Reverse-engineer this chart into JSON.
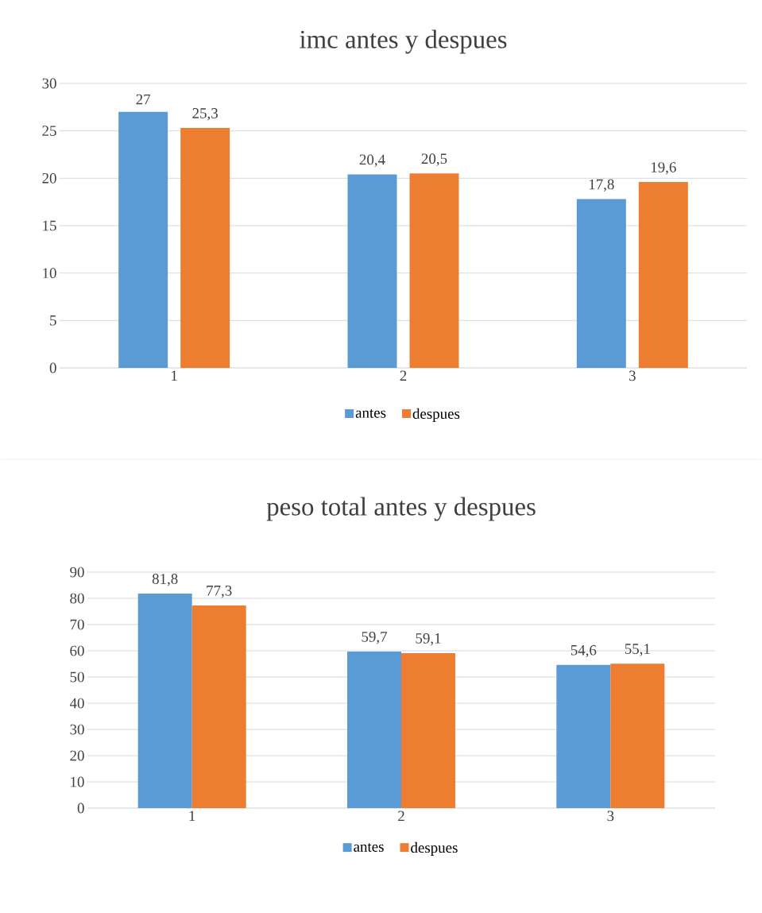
{
  "chart_data": [
    {
      "type": "bar",
      "title": "imc antes y despues",
      "categories": [
        "1",
        "2",
        "3"
      ],
      "series": [
        {
          "name": "antes",
          "color": "#5b9bd5",
          "values": [
            27,
            20.4,
            17.8
          ],
          "value_labels": [
            "27",
            "20,4",
            "17,8"
          ]
        },
        {
          "name": "despues",
          "color": "#ed7d31",
          "values": [
            25.3,
            20.5,
            19.6
          ],
          "value_labels": [
            "25,3",
            "20,5",
            "19,6"
          ]
        }
      ],
      "ylim": [
        0,
        30
      ],
      "yticks": [
        0,
        5,
        10,
        15,
        20,
        25,
        30
      ],
      "grid": "y",
      "legend": "bottom"
    },
    {
      "type": "bar",
      "title": "peso total antes y despues",
      "categories": [
        "1",
        "2",
        "3"
      ],
      "series": [
        {
          "name": "antes",
          "color": "#5b9bd5",
          "values": [
            81.8,
            59.7,
            54.6
          ],
          "value_labels": [
            "81,8",
            "59,7",
            "54,6"
          ]
        },
        {
          "name": "despues",
          "color": "#ed7d31",
          "values": [
            77.3,
            59.1,
            55.1
          ],
          "value_labels": [
            "77,3",
            "59,1",
            "55,1"
          ]
        }
      ],
      "ylim": [
        0,
        90
      ],
      "yticks": [
        0,
        10,
        20,
        30,
        40,
        50,
        60,
        70,
        80,
        90
      ],
      "grid": "y",
      "legend": "bottom"
    }
  ]
}
